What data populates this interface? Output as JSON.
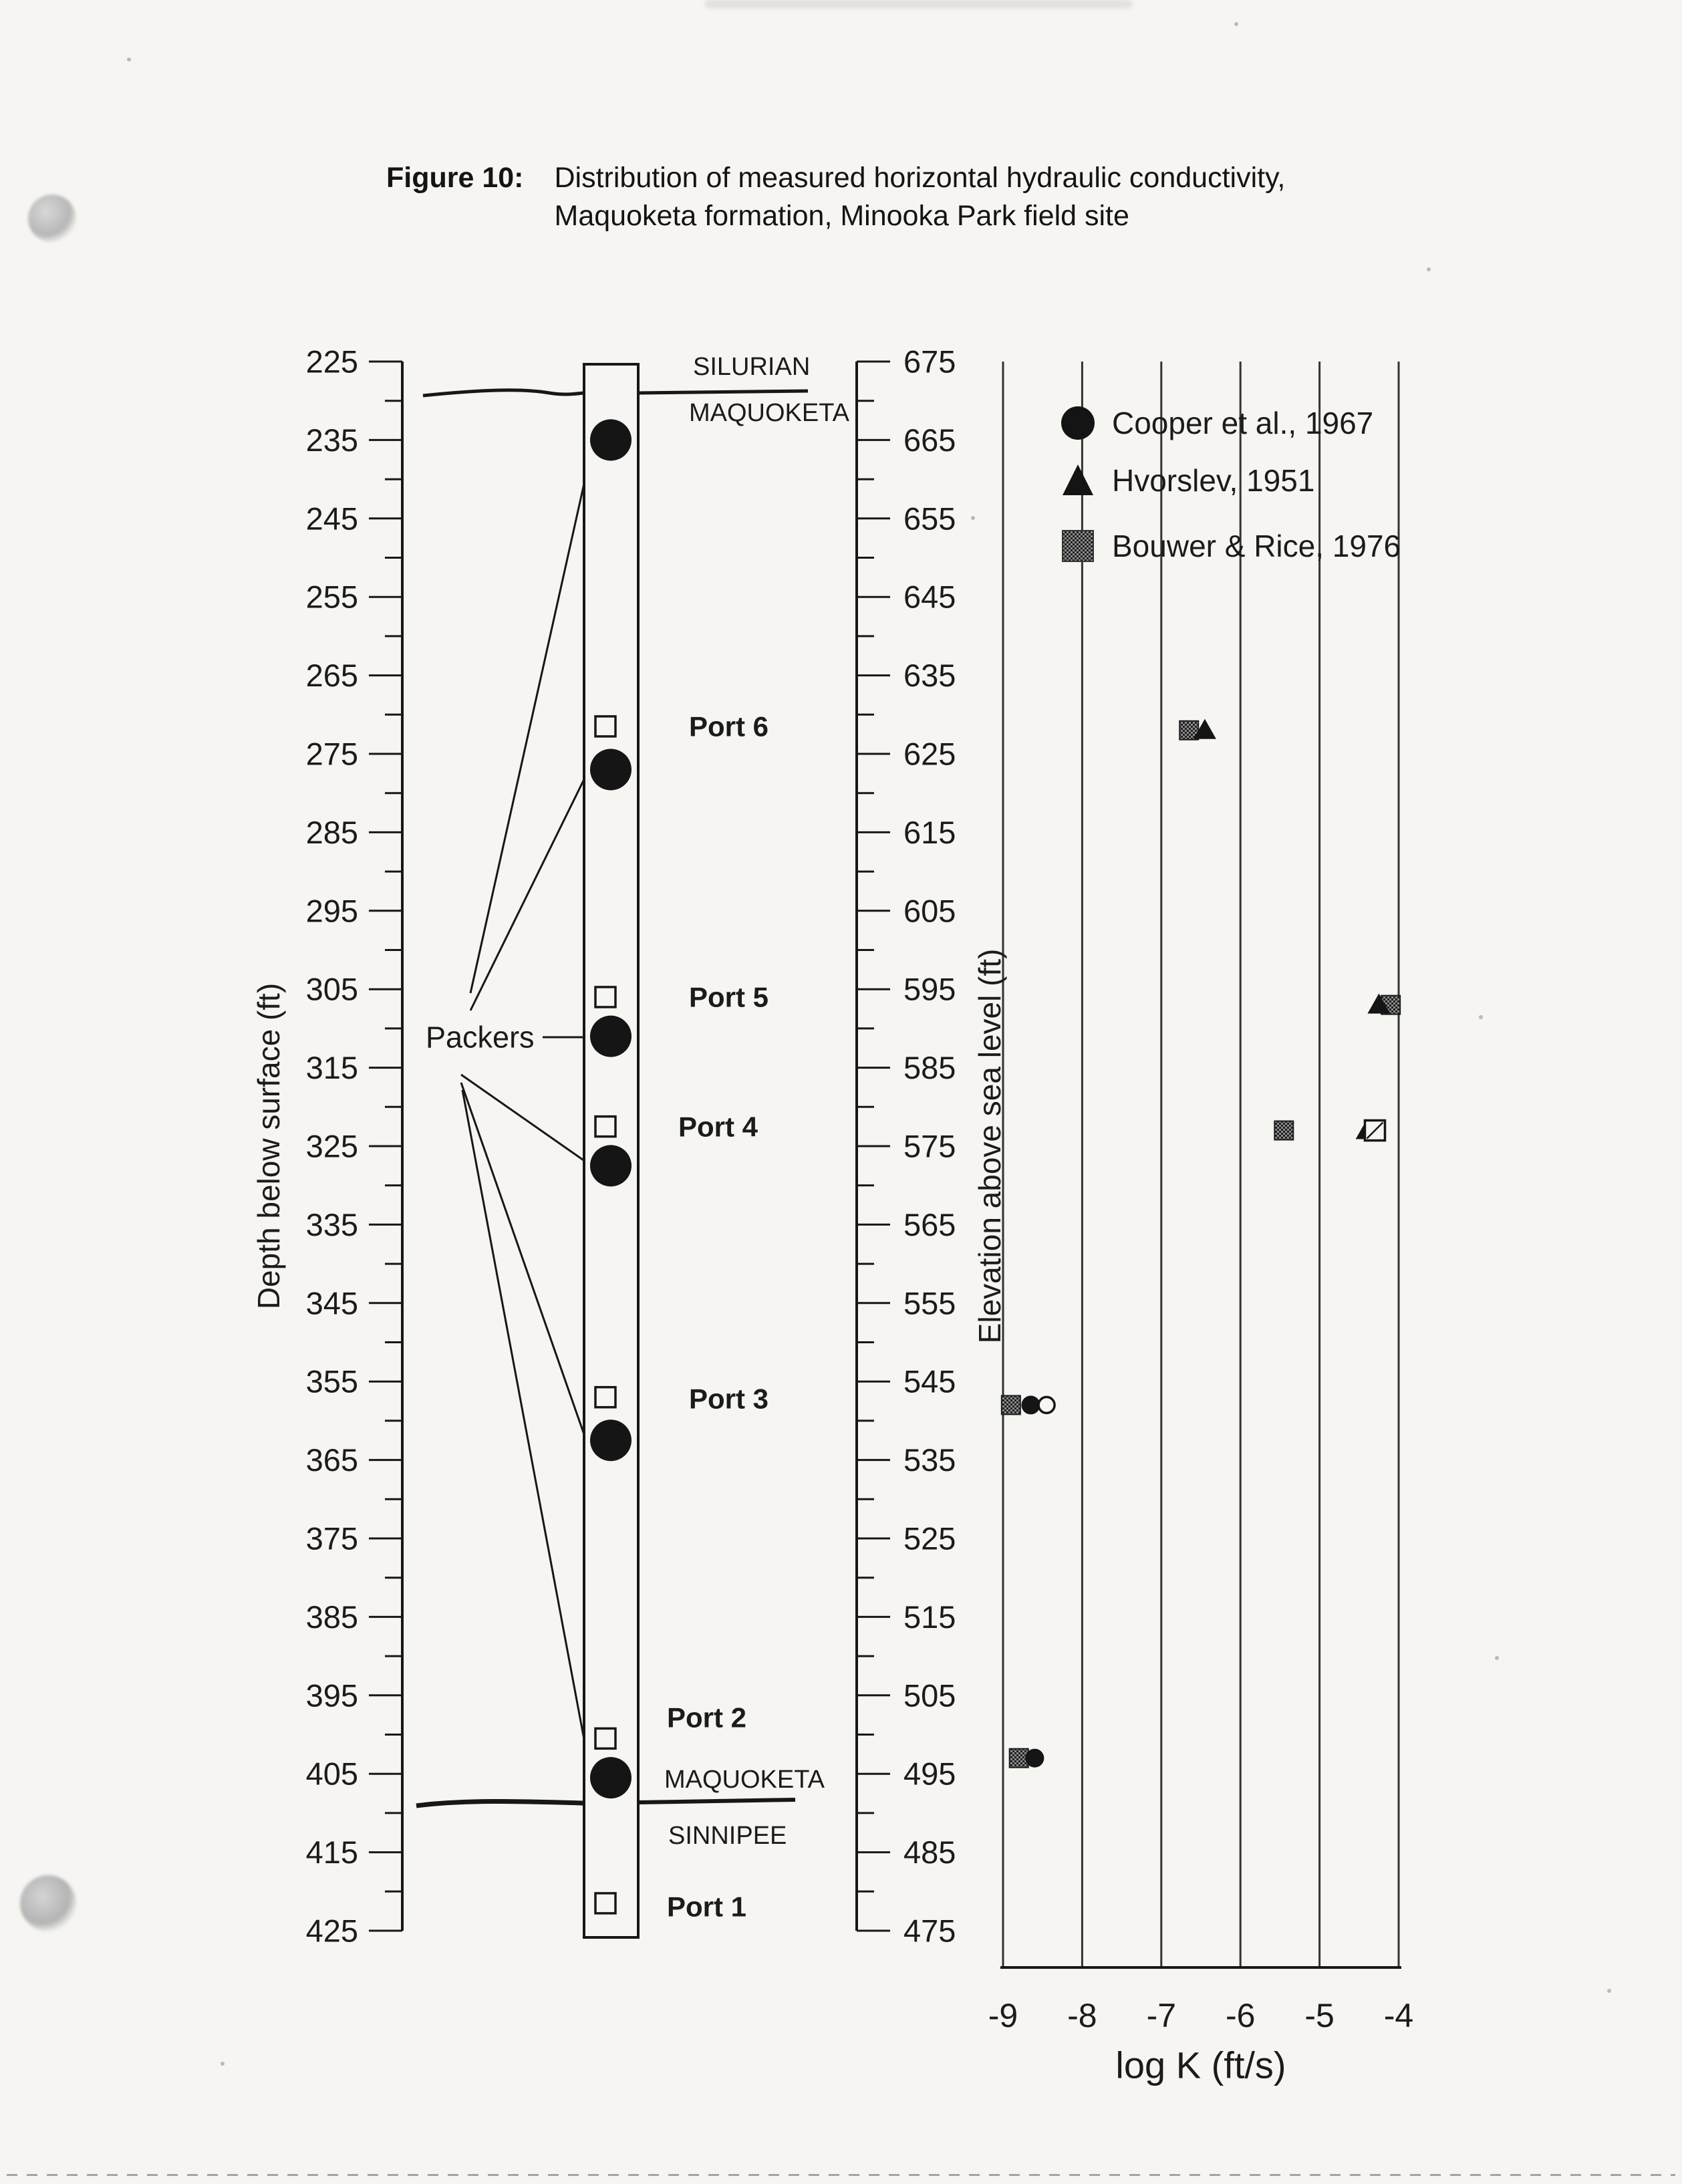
{
  "caption": {
    "label": "Figure 10:",
    "line1": "Distribution of measured horizontal hydraulic conductivity,",
    "line2": "Maquoketa formation, Minooka Park field site"
  },
  "borehole": {
    "packers_label": "Packers",
    "packer_depths_ft": [
      235,
      277,
      311,
      327.5,
      362.5,
      405.5
    ],
    "ports": [
      {
        "label": "Port 6",
        "depth_ft": 271.5
      },
      {
        "label": "Port 5",
        "depth_ft": 306
      },
      {
        "label": "Port 4",
        "depth_ft": 322.5
      },
      {
        "label": "Port 3",
        "depth_ft": 357
      },
      {
        "label": "Port 2",
        "depth_ft": 400.5
      },
      {
        "label": "Port 1",
        "depth_ft": 421.5
      }
    ]
  },
  "stratigraphy": {
    "top_contact": {
      "above": "SILURIAN",
      "below": "MAQUOKETA"
    },
    "bottom_contact": {
      "above": "MAQUOKETA",
      "below": "SINNIPEE"
    }
  },
  "chart_data": {
    "type": "scatter",
    "x_axis": {
      "label": "log K (ft/s)",
      "ticks": [
        -9,
        -8,
        -7,
        -6,
        -5,
        -4
      ],
      "range": [
        -9,
        -4
      ],
      "gridlines": "vertical"
    },
    "depth_axis": {
      "title": "Depth below surface (ft)",
      "ticks": [
        225,
        235,
        245,
        255,
        265,
        275,
        285,
        295,
        305,
        315,
        325,
        335,
        345,
        355,
        365,
        375,
        385,
        395,
        405,
        415,
        425
      ],
      "minor_tick_step_ft": 5
    },
    "elevation_axis": {
      "title": "Elevation above sea level (ft)",
      "ticks": [
        675,
        665,
        655,
        645,
        635,
        625,
        615,
        605,
        595,
        585,
        575,
        565,
        555,
        545,
        535,
        525,
        515,
        505,
        495,
        485,
        475
      ],
      "minor_tick_step_ft": 5
    },
    "legend_position": "top-left-of-plot",
    "series": [
      {
        "name": "Cooper et al., 1967",
        "marker": "filled-circle",
        "points": [
          {
            "logK": -8.65,
            "elevation_ft": 542
          },
          {
            "logK": -8.6,
            "elevation_ft": 497
          }
        ]
      },
      {
        "name": "Hvorslev, 1951",
        "marker": "filled-triangle",
        "points": [
          {
            "logK": -6.45,
            "elevation_ft": 628
          },
          {
            "logK": -4.25,
            "elevation_ft": 593
          },
          {
            "logK": -4.4,
            "elevation_ft": 577
          }
        ]
      },
      {
        "name": "Bouwer & Rice, 1976",
        "marker": "hatched-square",
        "points": [
          {
            "logK": -6.65,
            "elevation_ft": 628
          },
          {
            "logK": -4.1,
            "elevation_ft": 593
          },
          {
            "logK": -5.45,
            "elevation_ft": 577
          },
          {
            "logK": -8.9,
            "elevation_ft": 542
          },
          {
            "logK": -8.8,
            "elevation_ft": 497
          }
        ]
      },
      {
        "name": "unlabeled open symbols",
        "marker": "open",
        "points": [
          {
            "logK": -8.45,
            "elevation_ft": 542,
            "marker": "open-circle"
          },
          {
            "logK": -4.3,
            "elevation_ft": 577,
            "marker": "open-square"
          }
        ]
      }
    ]
  }
}
